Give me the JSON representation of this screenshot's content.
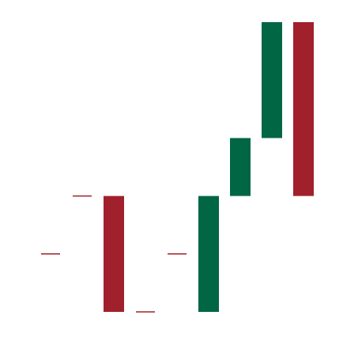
{
  "chart_data": {
    "type": "bar",
    "subtype": "waterfall",
    "categories": [
      "",
      "",
      "",
      "",
      "",
      "",
      "",
      "",
      ""
    ],
    "bars": [
      {
        "open": 1.0,
        "close": 1.0
      },
      {
        "open": 2.0,
        "close": 2.0
      },
      {
        "open": 2.0,
        "close": 0.0
      },
      {
        "open": 0.0,
        "close": 0.0
      },
      {
        "open": 1.0,
        "close": 1.0
      },
      {
        "open": 0.0,
        "close": 2.0
      },
      {
        "open": 2.0,
        "close": 3.0
      },
      {
        "open": 3.0,
        "close": 5.0
      },
      {
        "open": 5.0,
        "close": 2.0
      }
    ],
    "ylim": [
      0,
      5
    ],
    "grid": false,
    "legend": "none",
    "colors": {
      "increase": "#006644",
      "decrease": "#a0202b",
      "flat": "#a0202b"
    }
  }
}
